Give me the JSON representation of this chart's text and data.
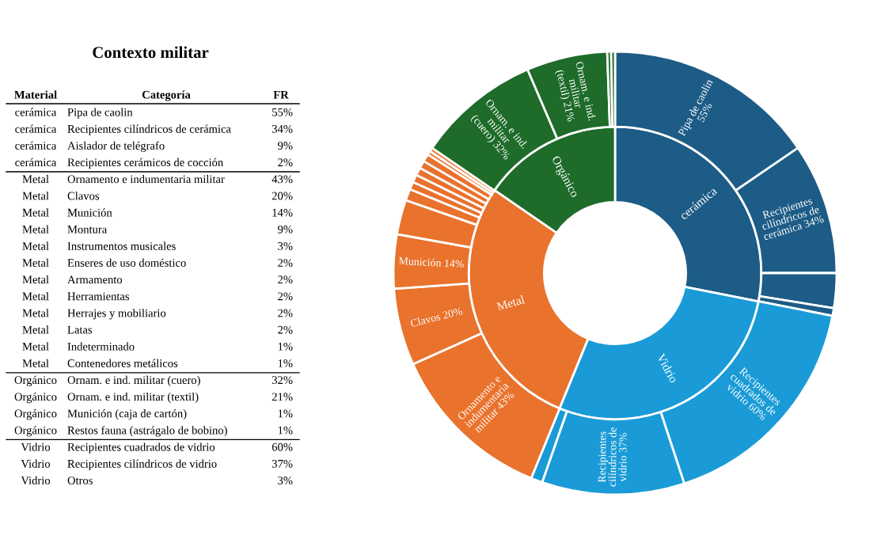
{
  "chart_data": [
    {
      "type": "other",
      "title": "Contexto militar",
      "annotations": [
        "Material",
        "Categoría",
        "FR"
      ],
      "y_categories": [
        "cerámica",
        "cerámica",
        "cerámica",
        "cerámica",
        "Metal",
        "Metal",
        "Metal",
        "Metal",
        "Metal",
        "Metal",
        "Metal",
        "Metal",
        "Metal",
        "Metal",
        "Metal",
        "Metal",
        "Orgánico",
        "Orgánico",
        "Orgánico",
        "Orgánico",
        "Vidrio",
        "Vidrio",
        "Vidrio"
      ],
      "categories": [
        "Pipa de caolin",
        "Recipientes cilíndricos de cerámica",
        "Aislador de telégrafo",
        "Recipientes cerámicos de cocción",
        "Ornamento e indumentaria militar",
        "Clavos",
        "Munición",
        "Montura",
        "Instrumentos musicales",
        "Enseres de uso doméstico",
        "Armamento",
        "Herramientas",
        "Herrajes y mobiliario",
        "Latas",
        "Indeterminado",
        "Contenedores metálicos",
        "Ornam. e ind. militar (cuero)",
        "Ornam. e ind. militar (textil)",
        "Munición (caja de cartón)",
        "Restos fauna (astrágalo de bobino)",
        "Recipientes cuadrados de vidrio",
        "Recipientes cilíndricos de vidrio",
        "Otros"
      ],
      "value_labels": [
        "55%",
        "34%",
        "9%",
        "2%",
        "43%",
        "20%",
        "14%",
        "9%",
        "3%",
        "2%",
        "2%",
        "2%",
        "2%",
        "2%",
        "1%",
        "1%",
        "32%",
        "21%",
        "1%",
        "1%",
        "60%",
        "37%",
        "3%"
      ]
    },
    {
      "type": "donut",
      "series": [
        {
          "value_labels": [
            "cerámica",
            "Vidrio",
            "Metal",
            "Orgánico"
          ],
          "values": [
            28.1,
            28.1,
            28.4,
            15.4
          ],
          "colors": [
            "#1c5c86",
            "#1a9bd7",
            "#e9722d",
            "#1e6b2a"
          ]
        },
        {
          "values": [
            55,
            34,
            9,
            2,
            60,
            37,
            3,
            43,
            20,
            14,
            9,
            3,
            2,
            2,
            2,
            2,
            2,
            1,
            1,
            32,
            21,
            1,
            1
          ],
          "value_labels": [
            "Pipa de caolin 55%",
            "Recipientes cilíndricos de cerámica 34%",
            null,
            null,
            "Recipientes cuadrados de vidrio 60%",
            "Recipientes cilíndricos de vidrio 37%",
            null,
            "Ornamento e indumentaria militar 43%",
            "Clavos 20%",
            "Munición 14%",
            null,
            null,
            null,
            null,
            null,
            null,
            null,
            null,
            null,
            "Ornam. e ind. militar (cuero) 32%",
            "Ornam. e ind. militar (textil) 21%",
            null,
            null
          ],
          "colors": [
            "#1c5c86",
            "#1c5c86",
            "#1c5c86",
            "#1c5c86",
            "#1a9bd7",
            "#1a9bd7",
            "#1a9bd7",
            "#e9722d",
            "#e9722d",
            "#e9722d",
            "#e9722d",
            "#e9722d",
            "#e9722d",
            "#e9722d",
            "#e9722d",
            "#e9722d",
            "#e9722d",
            "#e9722d",
            "#e9722d",
            "#1e6b2a",
            "#1e6b2a",
            "#1e6b2a",
            "#1e6b2a"
          ]
        }
      ]
    }
  ]
}
